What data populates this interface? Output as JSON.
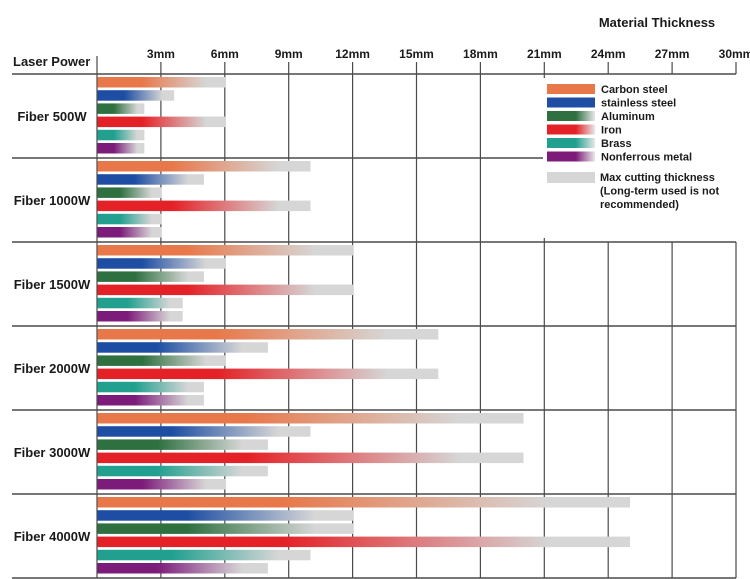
{
  "chart_data": {
    "type": "bar",
    "orientation": "horizontal",
    "title": "Material Thickness",
    "ylabel": "Laser Power",
    "xlabel": "Material Thickness",
    "xlim": [
      0,
      30
    ],
    "unit": "mm",
    "x_ticks": [
      "3mm",
      "6mm",
      "9mm",
      "12mm",
      "15mm",
      "18mm",
      "21mm",
      "24mm",
      "27mm",
      "30mm"
    ],
    "x_tick_values": [
      3,
      6,
      9,
      12,
      15,
      18,
      21,
      24,
      27,
      30
    ],
    "grid": true,
    "legend_position": "top-right",
    "categories": [
      "Fiber 500W",
      "Fiber 1000W",
      "Fiber 1500W",
      "Fiber 2000W",
      "Fiber 3000W",
      "Fiber 4000W"
    ],
    "series": [
      {
        "name": "Carbon steel",
        "color": "#e8784a",
        "values": [
          6,
          10,
          12,
          16,
          20,
          25
        ]
      },
      {
        "name": "stainless steel",
        "color": "#1e4ea3",
        "values": [
          3.6,
          5,
          6,
          8,
          10,
          12
        ]
      },
      {
        "name": "Aluminum",
        "color": "#2e7040",
        "values": [
          2.2,
          3,
          5,
          6,
          8,
          12
        ]
      },
      {
        "name": "Iron",
        "color": "#e42127",
        "values": [
          6,
          10,
          12,
          16,
          20,
          25
        ]
      },
      {
        "name": "Brass",
        "color": "#21a090",
        "values": [
          2.2,
          3,
          4,
          5,
          8,
          10
        ]
      },
      {
        "name": "Nonferrous metal",
        "color": "#7d1b7a",
        "values": [
          2.2,
          3,
          4,
          5,
          6,
          8
        ]
      }
    ],
    "legend_note": {
      "label_lines": [
        "Max cutting thickness",
        "(Long-term used is not",
        " recommended)"
      ],
      "color": "#d6d6d6"
    }
  }
}
